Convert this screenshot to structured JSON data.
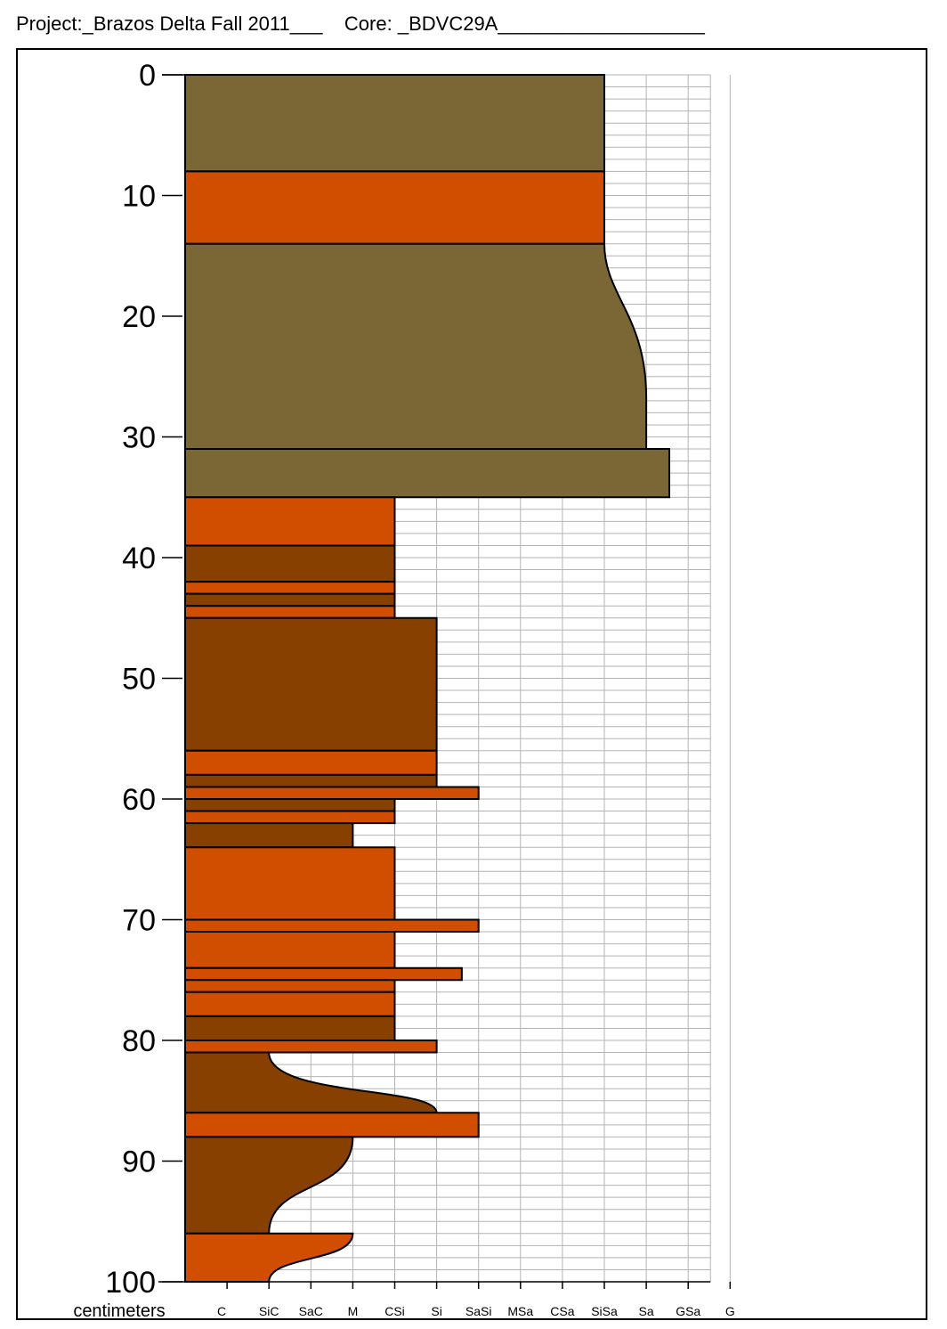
{
  "header": {
    "project_label": "Project:",
    "project_value": "_Brazos Delta Fall 2011___",
    "core_label": "Core:",
    "core_value": "_BDVC29A___________________"
  },
  "axis": {
    "depth_unit": "centimeters",
    "depth_ticks": [
      0,
      10,
      20,
      30,
      40,
      50,
      60,
      70,
      80,
      90,
      100
    ],
    "depth_range": [
      0,
      100
    ],
    "grain_classes": [
      "C",
      "SiC",
      "SaC",
      "M",
      "CSi",
      "Si",
      "SaSi",
      "MSa",
      "CSa",
      "SiSa",
      "Sa",
      "GSa",
      "G"
    ]
  },
  "colors": {
    "olive": "#7a6735",
    "orange": "#d14e00",
    "brown": "#874000",
    "grid": "#b3b3b3",
    "outline": "#000000"
  },
  "chart_data": {
    "type": "grain-size core log",
    "grid": true,
    "layers": [
      {
        "top": 0,
        "bottom": 8,
        "grain_top": "SiSa",
        "grain_bottom": "SiSa",
        "color": "olive"
      },
      {
        "top": 8,
        "bottom": 14,
        "grain_top": "SiSa",
        "grain_bottom": "SiSa",
        "color": "orange"
      },
      {
        "top": 14,
        "bottom": 31,
        "grain_top": "SiSa",
        "grain_bottom": "Sa",
        "color": "olive",
        "profile": "coarsening-up-curve"
      },
      {
        "top": 31,
        "bottom": 35,
        "grain_top": "Sa+",
        "grain_bottom": "Sa+",
        "color": "olive"
      },
      {
        "top": 35,
        "bottom": 39,
        "grain_top": "CSi",
        "grain_bottom": "CSi",
        "color": "orange"
      },
      {
        "top": 39,
        "bottom": 42,
        "grain_top": "CSi",
        "grain_bottom": "CSi",
        "color": "brown"
      },
      {
        "top": 42,
        "bottom": 43,
        "grain_top": "CSi",
        "grain_bottom": "CSi",
        "color": "orange"
      },
      {
        "top": 43,
        "bottom": 44,
        "grain_top": "CSi",
        "grain_bottom": "CSi",
        "color": "brown"
      },
      {
        "top": 44,
        "bottom": 45,
        "grain_top": "CSi",
        "grain_bottom": "CSi",
        "color": "orange"
      },
      {
        "top": 45,
        "bottom": 56,
        "grain_top": "Si",
        "grain_bottom": "Si",
        "color": "brown"
      },
      {
        "top": 56,
        "bottom": 58,
        "grain_top": "Si",
        "grain_bottom": "Si",
        "color": "orange"
      },
      {
        "top": 58,
        "bottom": 59,
        "grain_top": "Si",
        "grain_bottom": "Si",
        "color": "brown"
      },
      {
        "top": 59,
        "bottom": 60,
        "grain_top": "SaSi",
        "grain_bottom": "SaSi",
        "color": "orange"
      },
      {
        "top": 60,
        "bottom": 61,
        "grain_top": "CSi",
        "grain_bottom": "CSi",
        "color": "brown"
      },
      {
        "top": 61,
        "bottom": 62,
        "grain_top": "CSi",
        "grain_bottom": "CSi",
        "color": "orange"
      },
      {
        "top": 62,
        "bottom": 64,
        "grain_top": "M",
        "grain_bottom": "M",
        "color": "brown"
      },
      {
        "top": 64,
        "bottom": 70,
        "grain_top": "CSi",
        "grain_bottom": "CSi",
        "color": "orange"
      },
      {
        "top": 70,
        "bottom": 71,
        "grain_top": "SaSi",
        "grain_bottom": "SaSi",
        "color": "orange"
      },
      {
        "top": 71,
        "bottom": 74,
        "grain_top": "CSi",
        "grain_bottom": "CSi",
        "color": "orange"
      },
      {
        "top": 74,
        "bottom": 75,
        "grain_top": "Si-SaSi",
        "grain_bottom": "Si-SaSi",
        "color": "orange"
      },
      {
        "top": 75,
        "bottom": 76,
        "grain_top": "CSi",
        "grain_bottom": "CSi",
        "color": "orange"
      },
      {
        "top": 76,
        "bottom": 78,
        "grain_top": "CSi",
        "grain_bottom": "CSi",
        "color": "orange"
      },
      {
        "top": 78,
        "bottom": 80,
        "grain_top": "CSi",
        "grain_bottom": "CSi",
        "color": "brown"
      },
      {
        "top": 80,
        "bottom": 81,
        "grain_top": "Si",
        "grain_bottom": "Si",
        "color": "orange"
      },
      {
        "top": 81,
        "bottom": 86,
        "grain_top": "SiC",
        "grain_bottom": "Si",
        "color": "brown",
        "profile": "coarsening-up-curve"
      },
      {
        "top": 86,
        "bottom": 88,
        "grain_top": "SaSi",
        "grain_bottom": "SaSi",
        "color": "orange"
      },
      {
        "top": 88,
        "bottom": 96,
        "grain_top": "M",
        "grain_bottom": "SiC",
        "color": "brown",
        "profile": "fining-down-curve"
      },
      {
        "top": 96,
        "bottom": 100,
        "grain_top": "M",
        "grain_bottom": "SiC",
        "color": "orange",
        "profile": "fining-down-curve"
      }
    ]
  }
}
